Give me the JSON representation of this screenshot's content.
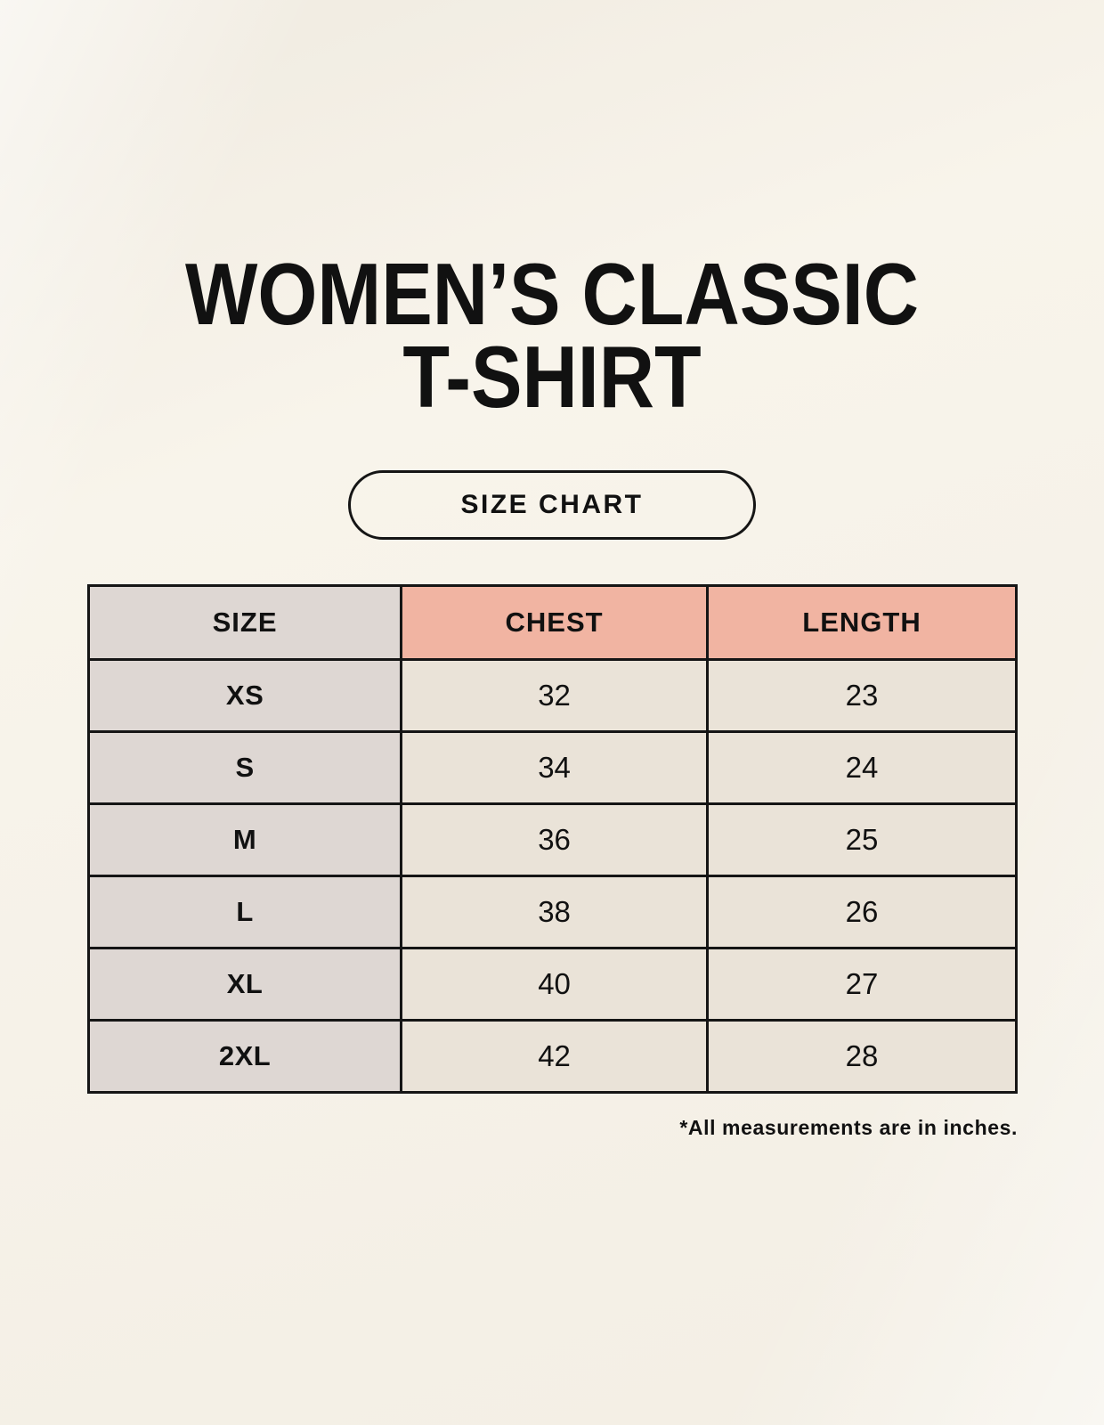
{
  "title": {
    "line1": "WOMEN’S CLASSIC",
    "line2": "T-SHIRT"
  },
  "size_chart_button": {
    "label": "SIZE CHART"
  },
  "table": {
    "headers": [
      "SIZE",
      "CHEST",
      "LENGTH"
    ],
    "rows": [
      {
        "size": "XS",
        "chest": "32",
        "length": "23"
      },
      {
        "size": "S",
        "chest": "34",
        "length": "24"
      },
      {
        "size": "M",
        "chest": "36",
        "length": "25"
      },
      {
        "size": "L",
        "chest": "38",
        "length": "26"
      },
      {
        "size": "XL",
        "chest": "40",
        "length": "27"
      },
      {
        "size": "2XL",
        "chest": "42",
        "length": "28"
      }
    ]
  },
  "footnote": "*All measurements are in inches.",
  "colors": {
    "background": "#f8f4eb",
    "size_column_bg": "#ded7d3",
    "measure_header_bg": "#f1b4a2",
    "value_cell_bg": "#eae3d8",
    "border": "#151515",
    "text": "#111111"
  }
}
